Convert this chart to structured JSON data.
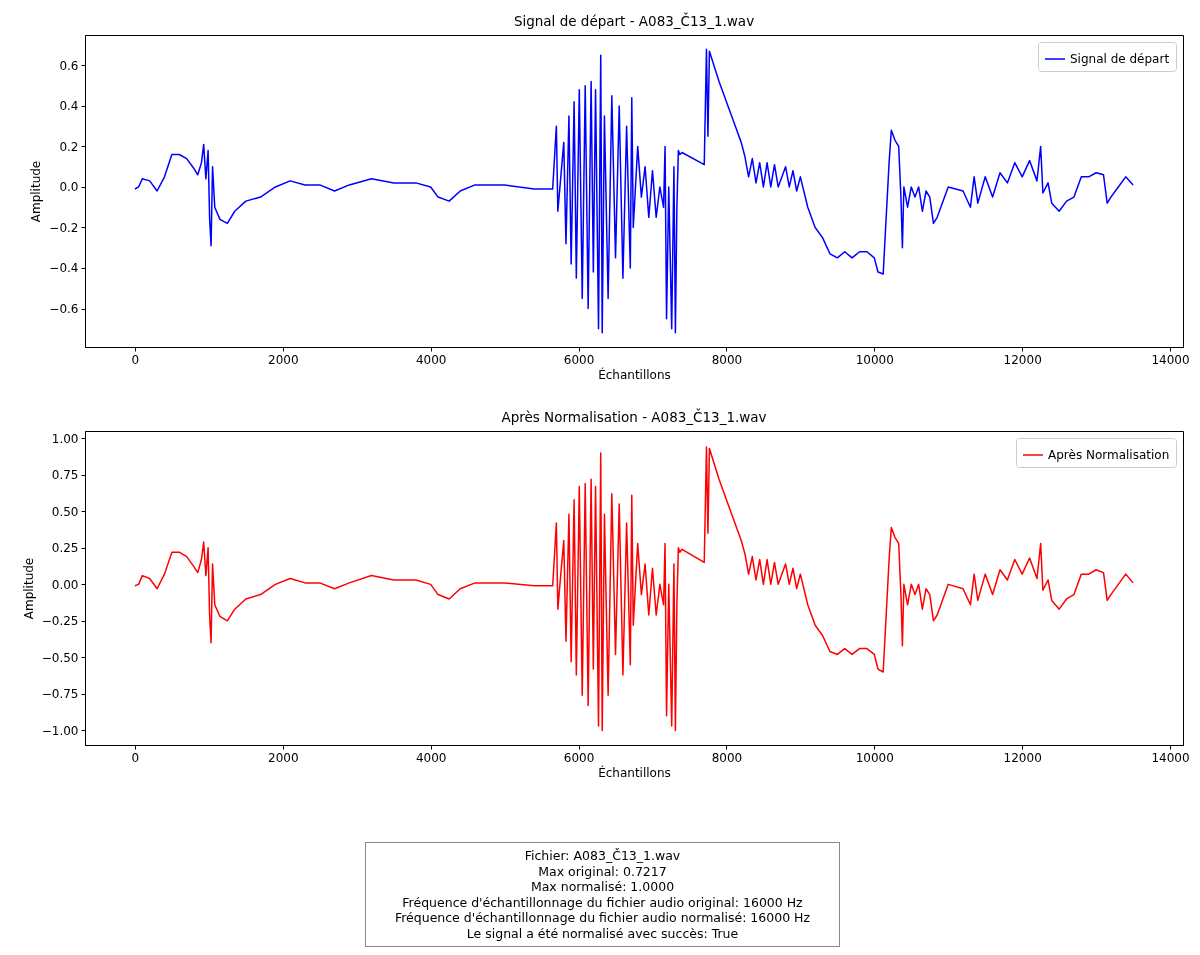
{
  "chart_data": [
    {
      "type": "line",
      "title": "Signal de départ - A083_Č13_1.wav",
      "xlabel": "Échantillons",
      "ylabel": "Amplitude",
      "legend": "top right",
      "grid": false,
      "xlim": [
        -675,
        14175
      ],
      "xticks": [
        0,
        2000,
        4000,
        6000,
        8000,
        10000,
        12000,
        14000
      ],
      "ylim": [
        -0.79,
        0.75
      ],
      "yticks": [
        {
          "value": -0.6,
          "label": "−0.6"
        },
        {
          "value": -0.4,
          "label": "−0.4"
        },
        {
          "value": -0.2,
          "label": "−0.2"
        },
        {
          "value": 0,
          "label": "0.0"
        },
        {
          "value": 0.2,
          "label": "0.2"
        },
        {
          "value": 0.4,
          "label": "0.4"
        },
        {
          "value": 0.6,
          "label": "0.6"
        }
      ],
      "x": [
        0,
        50,
        100,
        200,
        300,
        400,
        500,
        600,
        700,
        800,
        850,
        900,
        930,
        960,
        990,
        1010,
        1030,
        1050,
        1080,
        1150,
        1250,
        1350,
        1500,
        1700,
        1900,
        2100,
        2300,
        2500,
        2700,
        2900,
        3200,
        3500,
        3800,
        4000,
        4100,
        4250,
        4400,
        4600,
        5000,
        5400,
        5650,
        5700,
        5720,
        5760,
        5800,
        5830,
        5870,
        5900,
        5940,
        5970,
        6010,
        6050,
        6090,
        6130,
        6170,
        6200,
        6230,
        6270,
        6300,
        6320,
        6350,
        6400,
        6450,
        6500,
        6550,
        6600,
        6650,
        6700,
        6720,
        6740,
        6800,
        6850,
        6900,
        6950,
        7000,
        7050,
        7100,
        7150,
        7170,
        7190,
        7220,
        7260,
        7290,
        7310,
        7330,
        7350,
        7370,
        7400,
        7700,
        7730,
        7750,
        7770,
        7900,
        8000,
        8100,
        8200,
        8250,
        8300,
        8350,
        8400,
        8450,
        8500,
        8550,
        8600,
        8650,
        8700,
        8800,
        8850,
        8900,
        8950,
        9000,
        9100,
        9200,
        9300,
        9400,
        9500,
        9600,
        9700,
        9800,
        9900,
        10000,
        10050,
        10120,
        10200,
        10230,
        10280,
        10330,
        10360,
        10380,
        10400,
        10450,
        10500,
        10550,
        10600,
        10650,
        10700,
        10750,
        10800,
        10850,
        11000,
        11200,
        11300,
        11350,
        11400,
        11500,
        11600,
        11700,
        11800,
        11900,
        12000,
        12100,
        12200,
        12250,
        12280,
        12350,
        12400,
        12500,
        12600,
        12700,
        12800,
        12900,
        13000,
        13100,
        13150,
        13200,
        13300,
        13400,
        13500
      ],
      "series": [
        {
          "name": "Signal de départ",
          "color": "#0000ff",
          "values": [
            -0.01,
            0,
            0.04,
            0.03,
            -0.02,
            0.05,
            0.16,
            0.16,
            0.14,
            0.09,
            0.06,
            0.12,
            0.21,
            0.04,
            0.18,
            -0.15,
            -0.29,
            0.1,
            -0.1,
            -0.16,
            -0.18,
            -0.12,
            -0.07,
            -0.05,
            0,
            0.03,
            0.01,
            0.01,
            -0.02,
            0.01,
            0.04,
            0.02,
            0.02,
            0,
            -0.05,
            -0.07,
            -0.02,
            0.01,
            0.01,
            -0.01,
            -0.01,
            0.3,
            -0.12,
            0.05,
            0.22,
            -0.28,
            0.35,
            -0.38,
            0.42,
            -0.45,
            0.48,
            -0.55,
            0.5,
            -0.6,
            0.52,
            -0.42,
            0.48,
            -0.7,
            0.65,
            -0.72,
            0.35,
            -0.55,
            0.45,
            -0.35,
            0.4,
            -0.45,
            0.3,
            -0.4,
            0.44,
            -0.2,
            0.2,
            -0.05,
            0.1,
            -0.15,
            0.08,
            -0.15,
            0,
            -0.1,
            0.2,
            -0.65,
            0,
            -0.7,
            0.1,
            -0.72,
            -0.1,
            0.18,
            0.16,
            0.17,
            0.11,
            0.68,
            0.25,
            0.67,
            0.52,
            0.42,
            0.32,
            0.22,
            0.15,
            0.05,
            0.14,
            0.02,
            0.12,
            0,
            0.12,
            0,
            0.11,
            0,
            0.1,
            0,
            0.08,
            -0.02,
            0.05,
            -0.1,
            -0.2,
            -0.25,
            -0.33,
            -0.35,
            -0.32,
            -0.35,
            -0.32,
            -0.32,
            -0.35,
            -0.42,
            -0.43,
            0.12,
            0.28,
            0.23,
            0.2,
            -0.05,
            -0.3,
            0,
            -0.1,
            0,
            -0.05,
            0,
            -0.12,
            -0.02,
            -0.05,
            -0.18,
            -0.15,
            0,
            -0.02,
            -0.1,
            0.05,
            -0.08,
            0.05,
            -0.05,
            0.07,
            0.02,
            0.12,
            0.05,
            0.13,
            0.03,
            0.2,
            -0.03,
            0.02,
            -0.08,
            -0.12,
            -0.07,
            -0.05,
            0.05,
            0.05,
            0.07,
            0.06,
            -0.08,
            -0.05,
            0,
            0.05,
            0.01
          ]
        }
      ]
    },
    {
      "type": "line",
      "title": "Après Normalisation - A083_Č13_1.wav",
      "xlabel": "Échantillons",
      "ylabel": "Amplitude",
      "legend": "top right",
      "grid": false,
      "xlim": [
        -675,
        14175
      ],
      "xticks": [
        0,
        2000,
        4000,
        6000,
        8000,
        10000,
        12000,
        14000
      ],
      "ylim": [
        -1.1,
        1.05
      ],
      "yticks": [
        {
          "value": -1,
          "label": "−1.00"
        },
        {
          "value": -0.75,
          "label": "−0.75"
        },
        {
          "value": -0.5,
          "label": "−0.50"
        },
        {
          "value": -0.25,
          "label": "−0.25"
        },
        {
          "value": 0,
          "label": "0.00"
        },
        {
          "value": 0.25,
          "label": "0.25"
        },
        {
          "value": 0.5,
          "label": "0.50"
        },
        {
          "value": 0.75,
          "label": "0.75"
        },
        {
          "value": 1,
          "label": "1.00"
        }
      ],
      "x": [
        0,
        50,
        100,
        200,
        300,
        400,
        500,
        600,
        700,
        800,
        850,
        900,
        930,
        960,
        990,
        1010,
        1030,
        1050,
        1080,
        1150,
        1250,
        1350,
        1500,
        1700,
        1900,
        2100,
        2300,
        2500,
        2700,
        2900,
        3200,
        3500,
        3800,
        4000,
        4100,
        4250,
        4400,
        4600,
        5000,
        5400,
        5650,
        5700,
        5720,
        5760,
        5800,
        5830,
        5870,
        5900,
        5940,
        5970,
        6010,
        6050,
        6090,
        6130,
        6170,
        6200,
        6230,
        6270,
        6300,
        6320,
        6350,
        6400,
        6450,
        6500,
        6550,
        6600,
        6650,
        6700,
        6720,
        6740,
        6800,
        6850,
        6900,
        6950,
        7000,
        7050,
        7100,
        7150,
        7170,
        7190,
        7220,
        7260,
        7290,
        7310,
        7330,
        7350,
        7370,
        7400,
        7700,
        7730,
        7750,
        7770,
        7900,
        8000,
        8100,
        8200,
        8250,
        8300,
        8350,
        8400,
        8450,
        8500,
        8550,
        8600,
        8650,
        8700,
        8800,
        8850,
        8900,
        8950,
        9000,
        9100,
        9200,
        9300,
        9400,
        9500,
        9600,
        9700,
        9800,
        9900,
        10000,
        10050,
        10120,
        10200,
        10230,
        10280,
        10330,
        10360,
        10380,
        10400,
        10450,
        10500,
        10550,
        10600,
        10650,
        10700,
        10750,
        10800,
        10850,
        11000,
        11200,
        11300,
        11350,
        11400,
        11500,
        11600,
        11700,
        11800,
        11900,
        12000,
        12100,
        12200,
        12250,
        12280,
        12350,
        12400,
        12500,
        12600,
        12700,
        12800,
        12900,
        13000,
        13100,
        13150,
        13200,
        13300,
        13400,
        13500
      ],
      "series": [
        {
          "name": "Après Normalisation",
          "color": "#ff0000",
          "values": [
            -0.01,
            0,
            0.06,
            0.04,
            -0.03,
            0.07,
            0.22,
            0.22,
            0.19,
            0.12,
            0.08,
            0.17,
            0.29,
            0.06,
            0.25,
            -0.21,
            -0.4,
            0.14,
            -0.14,
            -0.22,
            -0.25,
            -0.17,
            -0.1,
            -0.07,
            0,
            0.04,
            0.01,
            0.01,
            -0.03,
            0.01,
            0.06,
            0.03,
            0.03,
            0,
            -0.07,
            -0.1,
            -0.03,
            0.01,
            0.01,
            -0.01,
            -0.01,
            0.42,
            -0.17,
            0.07,
            0.3,
            -0.39,
            0.48,
            -0.53,
            0.58,
            -0.62,
            0.67,
            -0.76,
            0.69,
            -0.83,
            0.72,
            -0.58,
            0.67,
            -0.97,
            0.9,
            -1.0,
            0.48,
            -0.76,
            0.62,
            -0.48,
            0.55,
            -0.62,
            0.42,
            -0.55,
            0.61,
            -0.28,
            0.28,
            -0.07,
            0.14,
            -0.21,
            0.11,
            -0.21,
            0,
            -0.14,
            0.28,
            -0.9,
            0,
            -0.97,
            0.14,
            -1.0,
            -0.14,
            0.25,
            0.22,
            0.24,
            0.15,
            0.94,
            0.35,
            0.93,
            0.72,
            0.58,
            0.44,
            0.3,
            0.21,
            0.07,
            0.19,
            0.03,
            0.17,
            0,
            0.17,
            0,
            0.15,
            0,
            0.14,
            0,
            0.11,
            -0.03,
            0.07,
            -0.14,
            -0.28,
            -0.35,
            -0.46,
            -0.48,
            -0.44,
            -0.48,
            -0.44,
            -0.44,
            -0.48,
            -0.58,
            -0.6,
            0.17,
            0.39,
            0.32,
            0.28,
            -0.07,
            -0.42,
            0,
            -0.14,
            0,
            -0.07,
            0,
            -0.17,
            -0.03,
            -0.07,
            -0.25,
            -0.21,
            0,
            -0.03,
            -0.14,
            0.07,
            -0.11,
            0.07,
            -0.07,
            0.1,
            0.03,
            0.17,
            0.07,
            0.18,
            0.04,
            0.28,
            -0.04,
            0.03,
            -0.11,
            -0.17,
            -0.1,
            -0.07,
            0.07,
            0.07,
            0.1,
            0.08,
            -0.11,
            -0.07,
            0,
            0.07,
            0.01
          ]
        }
      ]
    },
    {
      "type": "other",
      "annotations": [
        "Fichier: A083_Č13_1.wav",
        "Max original: 0.7217",
        "Max normalisé: 1.0000",
        "Fréquence d'échantillonnage du fichier audio original: 16000 Hz",
        "Fréquence d'échantillonnage du fichier audio normalisé: 16000 Hz",
        "Le signal a été normalisé avec succès: True"
      ]
    }
  ]
}
